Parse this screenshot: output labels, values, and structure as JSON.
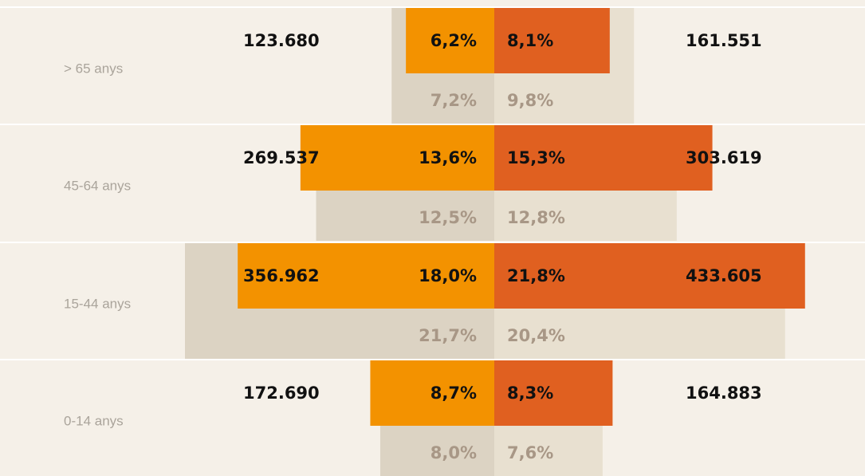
{
  "chart_data": {
    "type": "pyramid",
    "categories": [
      "> 65 anys",
      "45-64 anys",
      "15-44 anys",
      "0-14 anys"
    ],
    "xlim": [
      -25,
      25
    ],
    "series": [
      {
        "side": "left",
        "color": "#f39200",
        "values": [
          6.2,
          13.6,
          18.0,
          8.7
        ],
        "value_labels": [
          "6,2%",
          "13,6%",
          "18,0%",
          "8,7%"
        ]
      },
      {
        "side": "right",
        "color": "#e06020",
        "values": [
          8.1,
          15.3,
          21.8,
          8.3
        ],
        "value_labels": [
          "8,1%",
          "15,3%",
          "21,8%",
          "8,3%"
        ]
      },
      {
        "side": "left",
        "color": "#dcd3c3",
        "values": [
          7.2,
          12.5,
          21.7,
          8.0
        ],
        "value_labels": [
          "7,2%",
          "12,5%",
          "21,7%",
          "8,0%"
        ]
      },
      {
        "side": "right",
        "color": "#e8e0d0",
        "values": [
          9.8,
          12.8,
          20.4,
          7.6
        ],
        "value_labels": [
          "9,8%",
          "12,8%",
          "20,4%",
          "7,6%"
        ]
      }
    ],
    "totals": [
      {
        "side": "left",
        "values": [
          123680,
          269537,
          356962,
          172690
        ],
        "value_labels": [
          "123.680",
          "269.537",
          "356.962",
          "172.690"
        ]
      },
      {
        "side": "right",
        "values": [
          161551,
          303619,
          433605,
          164883
        ],
        "value_labels": [
          "161.551",
          "303.619",
          "433.605",
          "164.883"
        ]
      }
    ]
  }
}
